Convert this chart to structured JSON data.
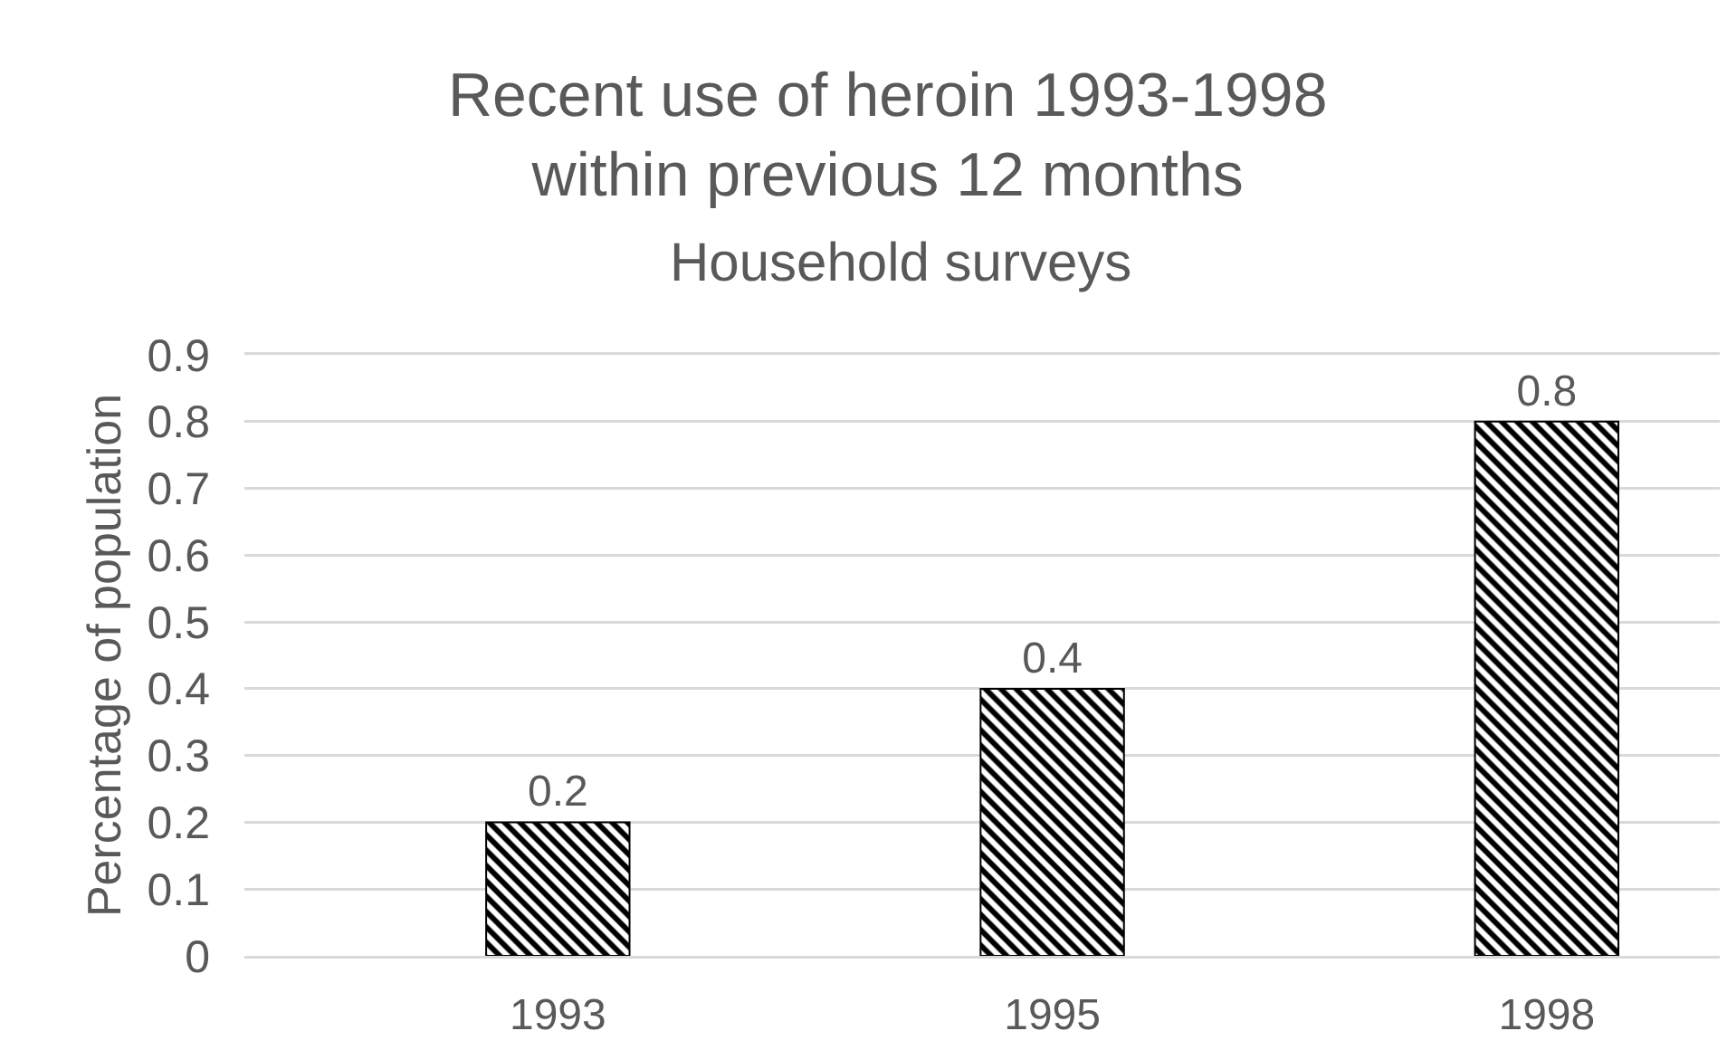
{
  "chart_data": {
    "type": "bar",
    "title": "Recent use of heroin 1993-1998\nwithin previous 12 months",
    "subtitle": "Household surveys",
    "ylabel": "Percentage of population",
    "categories": [
      "1993",
      "1995",
      "1998"
    ],
    "values": [
      0.2,
      0.4,
      0.8
    ],
    "color": "#000000",
    "ylim": [
      0,
      0.9
    ],
    "yticks": [
      0,
      0.1,
      0.2,
      0.3,
      0.4,
      0.5,
      0.6,
      0.7,
      0.8,
      0.9
    ],
    "grid": "y",
    "data_labels": true
  }
}
